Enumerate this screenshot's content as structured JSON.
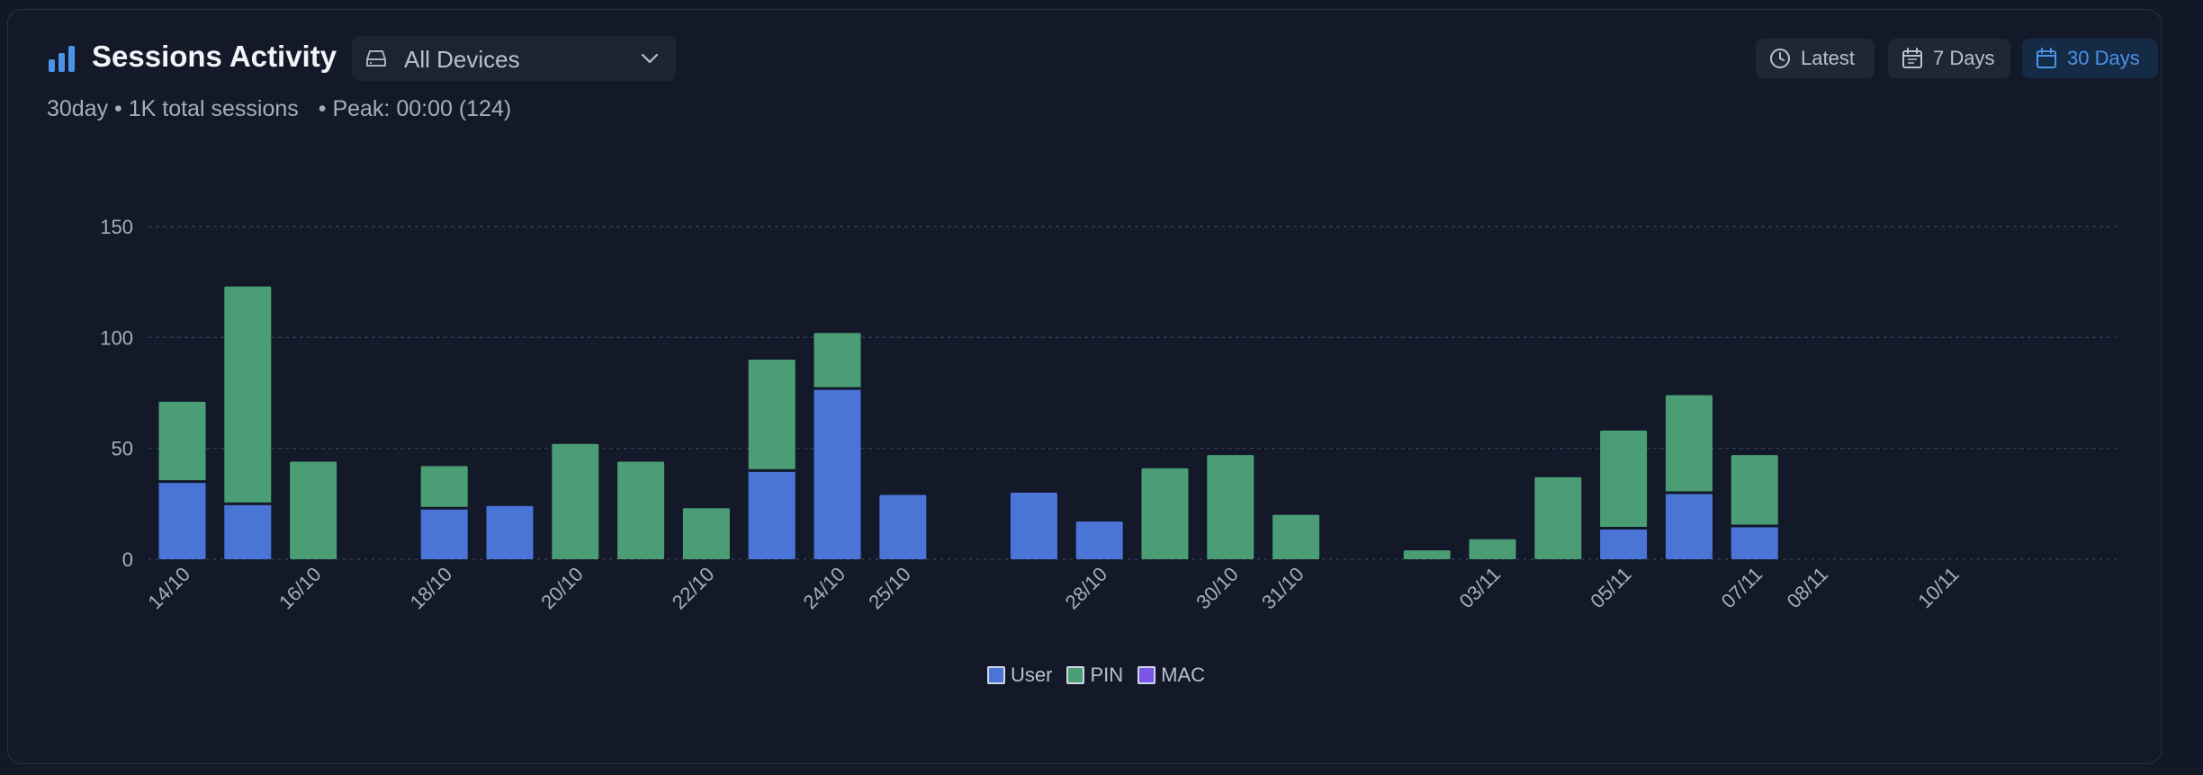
{
  "header": {
    "title": "Sessions Activity",
    "device_select": {
      "value": "All Devices"
    },
    "subtitle_left": "30day • 1K total sessions",
    "subtitle_right": "• Peak: 00:00 (124)"
  },
  "range_buttons": {
    "latest": "Latest",
    "seven": "7 Days",
    "thirty": "30 Days",
    "active": "30 Days"
  },
  "colors": {
    "user": "#4a75d6",
    "pin": "#4a9d74",
    "mac": "#7a55e8",
    "accent": "#4b93e8"
  },
  "chart_data": {
    "type": "bar",
    "stacked": true,
    "ylim": [
      0,
      150
    ],
    "yticks": [
      0,
      50,
      100,
      150
    ],
    "grid": true,
    "categories": [
      "14/10",
      "15/10",
      "16/10",
      "17/10",
      "18/10",
      "19/10",
      "20/10",
      "21/10",
      "22/10",
      "23/10",
      "24/10",
      "25/10",
      "26/10",
      "27/10",
      "28/10",
      "29/10",
      "30/10",
      "31/10",
      "01/11",
      "02/11",
      "03/11",
      "04/11",
      "05/11",
      "06/11",
      "07/11",
      "08/11",
      "09/11",
      "10/11",
      "11/11"
    ],
    "xtick_labels": [
      "14/10",
      "16/10",
      "18/10",
      "20/10",
      "22/10",
      "24/10",
      "25/10",
      "28/10",
      "30/10",
      "31/10",
      "03/11",
      "05/11",
      "07/11",
      "08/11",
      "10/11"
    ],
    "series": [
      {
        "name": "User",
        "values": [
          35,
          25,
          0,
          0,
          23,
          24,
          0,
          0,
          0,
          40,
          77,
          29,
          0,
          30,
          17,
          0,
          0,
          0,
          0,
          0,
          0,
          0,
          14,
          30,
          15,
          0,
          0,
          0,
          0
        ]
      },
      {
        "name": "PIN",
        "values": [
          36,
          98,
          44,
          0,
          19,
          0,
          52,
          44,
          23,
          50,
          25,
          0,
          0,
          0,
          0,
          41,
          47,
          20,
          0,
          4,
          9,
          37,
          44,
          44,
          32,
          0,
          0,
          0,
          0
        ]
      },
      {
        "name": "MAC",
        "values": [
          0,
          0,
          0,
          0,
          0,
          0,
          0,
          0,
          0,
          0,
          0,
          0,
          0,
          0,
          0,
          0,
          0,
          0,
          0,
          0,
          0,
          0,
          0,
          0,
          0,
          0,
          0,
          0,
          0
        ]
      }
    ]
  },
  "legend": {
    "user": "User",
    "pin": "PIN",
    "mac": "MAC"
  }
}
